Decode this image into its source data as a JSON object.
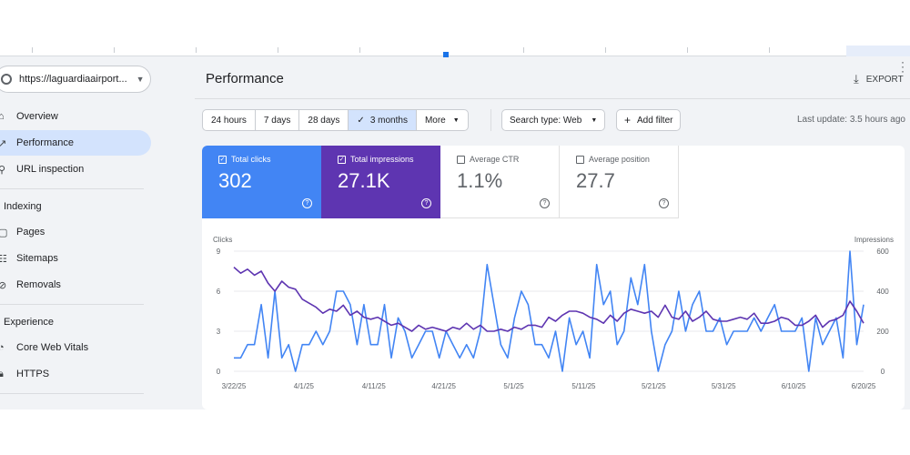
{
  "property": {
    "url": "https://laguardiaairport..."
  },
  "sidebar": {
    "items": [
      {
        "label": "Overview",
        "icon": "home-icon"
      },
      {
        "label": "Performance",
        "icon": "trending-icon",
        "active": true
      },
      {
        "label": "URL inspection",
        "icon": "search-icon"
      }
    ],
    "sections": [
      {
        "title": "Indexing",
        "items": [
          {
            "label": "Pages",
            "icon": "pages-icon"
          },
          {
            "label": "Sitemaps",
            "icon": "sitemap-icon"
          },
          {
            "label": "Removals",
            "icon": "removals-icon"
          }
        ]
      },
      {
        "title": "Experience",
        "items": [
          {
            "label": "Core Web Vitals",
            "icon": "speed-icon"
          },
          {
            "label": "HTTPS",
            "icon": "lock-icon"
          }
        ]
      }
    ]
  },
  "header": {
    "title": "Performance",
    "export_label": "EXPORT"
  },
  "filters": {
    "date_ranges": [
      "24 hours",
      "7 days",
      "28 days",
      "3 months",
      "More"
    ],
    "selected_range": "3 months",
    "search_type": "Search type: Web",
    "add_filter": "Add filter",
    "last_update": "Last update: 3.5 hours ago"
  },
  "metrics": {
    "clicks": {
      "label": "Total clicks",
      "value": "302",
      "checked": true
    },
    "impressions": {
      "label": "Total impressions",
      "value": "27.1K",
      "checked": true
    },
    "ctr": {
      "label": "Average CTR",
      "value": "1.1%",
      "checked": false
    },
    "position": {
      "label": "Average position",
      "value": "27.7",
      "checked": false
    }
  },
  "colors": {
    "clicks": "#4285f4",
    "impressions": "#5e35b1",
    "selected": "#d3e3fd"
  },
  "chart_data": {
    "type": "line",
    "left_axis_label": "Clicks",
    "right_axis_label": "Impressions",
    "y_left_ticks": [
      0,
      3,
      6,
      9
    ],
    "y_right_ticks": [
      0,
      200,
      400,
      600
    ],
    "y_left_range": [
      0,
      9
    ],
    "y_right_range": [
      0,
      600
    ],
    "x_ticks": [
      "3/22/25",
      "4/1/25",
      "4/11/25",
      "4/21/25",
      "5/1/25",
      "5/11/25",
      "5/21/25",
      "5/31/25",
      "6/10/25",
      "6/20/25"
    ],
    "grid": true,
    "series": [
      {
        "name": "Clicks",
        "axis": "left",
        "values": [
          1,
          1,
          2,
          2,
          5,
          1,
          6,
          1,
          2,
          0,
          2,
          2,
          3,
          2,
          3,
          6,
          6,
          5,
          2,
          5,
          2,
          2,
          5,
          1,
          4,
          3,
          1,
          2,
          3,
          3,
          1,
          3,
          2,
          1,
          2,
          1,
          3,
          8,
          5,
          2,
          1,
          4,
          6,
          5,
          2,
          2,
          1,
          3,
          0,
          4,
          2,
          3,
          1,
          8,
          5,
          6,
          2,
          3,
          7,
          5,
          8,
          3,
          0,
          2,
          3,
          6,
          3,
          5,
          6,
          3,
          3,
          4,
          2,
          3,
          3,
          3,
          4,
          3,
          4,
          5,
          3,
          3,
          3,
          4,
          0,
          4,
          2,
          3,
          4,
          1,
          9,
          2,
          5
        ]
      },
      {
        "name": "Impressions",
        "axis": "right",
        "values": [
          520,
          490,
          510,
          480,
          500,
          440,
          400,
          450,
          420,
          410,
          360,
          340,
          320,
          290,
          310,
          300,
          330,
          280,
          300,
          270,
          260,
          270,
          250,
          230,
          240,
          220,
          200,
          230,
          210,
          220,
          210,
          200,
          220,
          210,
          240,
          210,
          230,
          200,
          200,
          210,
          200,
          220,
          210,
          230,
          230,
          220,
          270,
          250,
          280,
          300,
          300,
          290,
          270,
          260,
          240,
          280,
          250,
          290,
          310,
          300,
          290,
          300,
          270,
          330,
          270,
          260,
          300,
          250,
          270,
          300,
          260,
          250,
          250,
          260,
          270,
          260,
          290,
          240,
          240,
          250,
          270,
          260,
          230,
          230,
          250,
          280,
          220,
          250,
          260,
          280,
          350,
          300,
          240
        ]
      }
    ]
  }
}
